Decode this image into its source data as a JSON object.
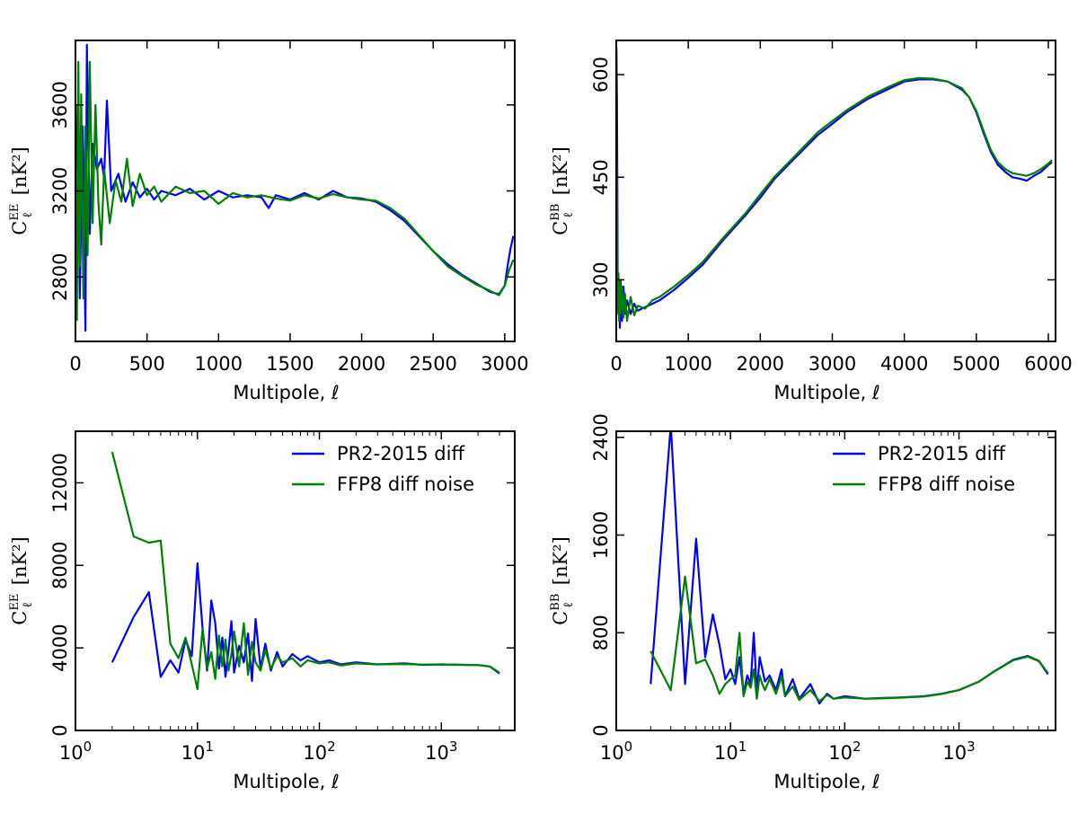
{
  "colors": {
    "series1": "#0000ff",
    "series2": "#008000",
    "axis": "#000000",
    "background": "#ffffff"
  },
  "chart_data": [
    {
      "id": "top-left",
      "type": "line",
      "xscale": "linear",
      "xlabel": "Multipole, ℓ",
      "ylabel": {
        "main": "C",
        "sub": "ℓ",
        "sup": "EE",
        "unit": "[nK²]"
      },
      "xlim": [
        0,
        3070
      ],
      "ylim": [
        2500,
        3900
      ],
      "xticks": [
        0,
        500,
        1000,
        1500,
        2000,
        2500,
        3000
      ],
      "xtick_labels": [
        "0",
        "500",
        "1000",
        "1500",
        "2000",
        "2500",
        "3000"
      ],
      "yticks": [
        2800,
        3200,
        3600
      ],
      "ytick_labels": [
        "2800",
        "3200",
        "3600"
      ],
      "series": [
        {
          "name": "PR2-2015 diff",
          "color": "#0000ff",
          "x": [
            2,
            15,
            30,
            50,
            70,
            80,
            100,
            120,
            150,
            180,
            200,
            220,
            250,
            300,
            350,
            400,
            450,
            500,
            550,
            600,
            700,
            800,
            900,
            1000,
            1100,
            1200,
            1300,
            1350,
            1400,
            1500,
            1600,
            1700,
            1800,
            1900,
            2000,
            2100,
            2200,
            2300,
            2400,
            2500,
            2600,
            2700,
            2800,
            2900,
            2960,
            3000,
            3020,
            3040,
            3060
          ],
          "y": [
            3000,
            3600,
            2700,
            3500,
            2550,
            3880,
            3000,
            3420,
            3300,
            3350,
            3260,
            3620,
            3200,
            3280,
            3150,
            3240,
            3170,
            3210,
            3160,
            3200,
            3180,
            3210,
            3160,
            3200,
            3170,
            3180,
            3170,
            3120,
            3180,
            3160,
            3190,
            3160,
            3200,
            3170,
            3165,
            3150,
            3110,
            3060,
            2990,
            2920,
            2860,
            2810,
            2770,
            2730,
            2720,
            2760,
            2850,
            2930,
            2990
          ]
        },
        {
          "name": "FFP8 diff noise",
          "color": "#008000",
          "x": [
            2,
            10,
            20,
            30,
            40,
            55,
            70,
            85,
            100,
            120,
            140,
            160,
            180,
            200,
            240,
            280,
            320,
            360,
            400,
            450,
            500,
            550,
            600,
            700,
            800,
            900,
            1000,
            1100,
            1200,
            1300,
            1400,
            1500,
            1600,
            1700,
            1800,
            1900,
            2000,
            2100,
            2200,
            2300,
            2400,
            2500,
            2600,
            2700,
            2800,
            2900,
            2960,
            3000,
            3030,
            3060
          ],
          "y": [
            3300,
            2600,
            3800,
            2850,
            3650,
            2700,
            3500,
            2900,
            3800,
            3050,
            3600,
            3150,
            2950,
            3300,
            3050,
            3250,
            3150,
            3350,
            3130,
            3280,
            3180,
            3220,
            3150,
            3220,
            3190,
            3200,
            3140,
            3190,
            3170,
            3180,
            3165,
            3155,
            3180,
            3165,
            3185,
            3170,
            3160,
            3155,
            3120,
            3070,
            2995,
            2920,
            2850,
            2805,
            2765,
            2735,
            2715,
            2760,
            2830,
            2880
          ]
        }
      ]
    },
    {
      "id": "top-right",
      "type": "line",
      "xscale": "linear",
      "xlabel": "Multipole, ℓ",
      "ylabel": {
        "main": "C",
        "sub": "ℓ",
        "sup": "BB",
        "unit": "[nK²]"
      },
      "xlim": [
        0,
        6100
      ],
      "ylim": [
        210,
        650
      ],
      "xticks": [
        0,
        1000,
        2000,
        3000,
        4000,
        5000,
        6000
      ],
      "xtick_labels": [
        "0",
        "1000",
        "2000",
        "3000",
        "4000",
        "5000",
        "6000"
      ],
      "yticks": [
        300,
        450,
        600
      ],
      "ytick_labels": [
        "300",
        "450",
        "600"
      ],
      "series": [
        {
          "name": "PR2-2015 diff",
          "color": "#0000ff",
          "x": [
            2,
            10,
            20,
            30,
            40,
            50,
            60,
            80,
            100,
            120,
            150,
            200,
            250,
            300,
            400,
            500,
            600,
            800,
            1000,
            1200,
            1500,
            1800,
            2000,
            2200,
            2500,
            2800,
            3000,
            3200,
            3500,
            3800,
            4000,
            4200,
            4400,
            4600,
            4800,
            4900,
            5000,
            5100,
            5200,
            5300,
            5400,
            5500,
            5600,
            5700,
            5800,
            5900,
            6000,
            6050
          ],
          "y": [
            640,
            560,
            300,
            250,
            280,
            230,
            300,
            240,
            290,
            250,
            270,
            250,
            265,
            255,
            260,
            265,
            270,
            285,
            303,
            322,
            360,
            395,
            420,
            448,
            480,
            512,
            528,
            545,
            565,
            580,
            590,
            593,
            593,
            590,
            578,
            567,
            545,
            515,
            487,
            468,
            458,
            450,
            448,
            445,
            452,
            458,
            468,
            472
          ]
        },
        {
          "name": "FFP8 diff noise",
          "color": "#008000",
          "x": [
            2,
            10,
            20,
            30,
            40,
            50,
            60,
            80,
            100,
            120,
            150,
            200,
            250,
            300,
            400,
            500,
            600,
            800,
            1000,
            1200,
            1500,
            1800,
            2000,
            2200,
            2500,
            2800,
            3000,
            3200,
            3500,
            3800,
            4000,
            4200,
            4400,
            4600,
            4800,
            4900,
            5000,
            5100,
            5200,
            5300,
            5400,
            5500,
            5600,
            5700,
            5800,
            5900,
            6000,
            6050
          ],
          "y": [
            470,
            420,
            260,
            310,
            240,
            300,
            250,
            290,
            245,
            280,
            240,
            275,
            248,
            262,
            258,
            270,
            275,
            290,
            307,
            326,
            363,
            398,
            425,
            451,
            483,
            516,
            532,
            548,
            568,
            583,
            592,
            595,
            594,
            590,
            580,
            567,
            547,
            518,
            490,
            472,
            462,
            456,
            454,
            452,
            456,
            462,
            470,
            475
          ]
        }
      ]
    },
    {
      "id": "bottom-left",
      "type": "line",
      "xscale": "log",
      "xlabel": "Multipole, ℓ",
      "ylabel": {
        "main": "C",
        "sub": "ℓ",
        "sup": "EE",
        "unit": "[nK²]"
      },
      "xlim": [
        1,
        4000
      ],
      "ylim": [
        0,
        14500
      ],
      "xticks": [
        1,
        10,
        100,
        1000
      ],
      "xtick_labels": [
        "10",
        "10",
        "10",
        "10"
      ],
      "xtick_exponents": [
        "0",
        "1",
        "2",
        "3"
      ],
      "yticks": [
        0,
        4000,
        8000,
        12000
      ],
      "ytick_labels": [
        "0",
        "4000",
        "8000",
        "12000"
      ],
      "legend": {
        "position": "top-right",
        "entries": [
          "PR2-2015 diff",
          "FFP8 diff noise"
        ]
      },
      "series": [
        {
          "name": "PR2-2015 diff",
          "color": "#0000ff",
          "x": [
            2,
            3,
            4,
            5,
            6,
            7,
            8,
            9,
            10,
            11,
            12,
            13,
            14,
            15,
            16,
            17,
            18,
            19,
            20,
            22,
            24,
            26,
            28,
            30,
            33,
            36,
            40,
            45,
            50,
            60,
            70,
            80,
            100,
            120,
            150,
            200,
            300,
            500,
            700,
            1000,
            1500,
            2000,
            2500,
            3000
          ],
          "y": [
            3300,
            5500,
            6700,
            2600,
            3400,
            2800,
            4400,
            3600,
            8100,
            5000,
            2900,
            6300,
            5200,
            3000,
            4500,
            2600,
            3900,
            5300,
            2800,
            4100,
            3300,
            4700,
            2400,
            5400,
            3000,
            4200,
            2900,
            3800,
            3100,
            3700,
            3400,
            3600,
            3300,
            3400,
            3200,
            3300,
            3200,
            3250,
            3180,
            3200,
            3180,
            3170,
            3100,
            2750
          ]
        },
        {
          "name": "FFP8 diff noise",
          "color": "#008000",
          "x": [
            2,
            3,
            4,
            5,
            6,
            7,
            8,
            9,
            10,
            11,
            12,
            13,
            14,
            15,
            16,
            17,
            18,
            19,
            20,
            22,
            24,
            26,
            28,
            30,
            33,
            36,
            40,
            45,
            50,
            60,
            70,
            80,
            100,
            120,
            150,
            200,
            300,
            500,
            700,
            1000,
            1500,
            2000,
            2500,
            3000
          ],
          "y": [
            13500,
            9400,
            9100,
            9200,
            4200,
            3500,
            4500,
            3200,
            2000,
            4900,
            3000,
            3800,
            2500,
            4600,
            3100,
            4400,
            2900,
            3700,
            4800,
            3100,
            5200,
            2700,
            4300,
            3300,
            2900,
            3900,
            3000,
            3600,
            3300,
            3500,
            3100,
            3400,
            3250,
            3300,
            3150,
            3250,
            3200,
            3220,
            3190,
            3200,
            3180,
            3170,
            3100,
            2800
          ]
        }
      ]
    },
    {
      "id": "bottom-right",
      "type": "line",
      "xscale": "log",
      "xlabel": "Multipole, ℓ",
      "ylabel": {
        "main": "C",
        "sub": "ℓ",
        "sup": "BB",
        "unit": "[nK²]"
      },
      "xlim": [
        1,
        7000
      ],
      "ylim": [
        0,
        2450
      ],
      "xticks": [
        1,
        10,
        100,
        1000
      ],
      "xtick_labels": [
        "10",
        "10",
        "10",
        "10"
      ],
      "xtick_exponents": [
        "0",
        "1",
        "2",
        "3"
      ],
      "yticks": [
        0,
        800,
        1600,
        2400
      ],
      "ytick_labels": [
        "0",
        "800",
        "1600",
        "2400"
      ],
      "legend": {
        "position": "top-right",
        "entries": [
          "PR2-2015 diff",
          "FFP8 diff noise"
        ]
      },
      "series": [
        {
          "name": "PR2-2015 diff",
          "color": "#0000ff",
          "x": [
            2,
            3,
            4,
            5,
            6,
            7,
            8,
            9,
            10,
            11,
            12,
            13,
            14,
            15,
            16,
            17,
            18,
            19,
            20,
            22,
            25,
            28,
            30,
            35,
            40,
            50,
            60,
            70,
            80,
            100,
            150,
            200,
            300,
            500,
            700,
            1000,
            1500,
            2000,
            3000,
            4000,
            5000,
            6000
          ],
          "y": [
            380,
            2500,
            380,
            1570,
            600,
            950,
            700,
            420,
            500,
            380,
            600,
            300,
            450,
            380,
            800,
            300,
            600,
            500,
            400,
            450,
            330,
            500,
            280,
            420,
            260,
            380,
            220,
            300,
            260,
            280,
            260,
            265,
            270,
            280,
            300,
            330,
            400,
            480,
            580,
            610,
            570,
            460
          ]
        },
        {
          "name": "FFP8 diff noise",
          "color": "#008000",
          "x": [
            2,
            3,
            4,
            5,
            6,
            7,
            8,
            9,
            10,
            11,
            12,
            13,
            14,
            15,
            16,
            17,
            18,
            19,
            20,
            22,
            25,
            28,
            30,
            35,
            40,
            50,
            60,
            70,
            80,
            100,
            150,
            200,
            300,
            500,
            700,
            1000,
            1500,
            2000,
            3000,
            4000,
            5000,
            6000
          ],
          "y": [
            650,
            330,
            1260,
            550,
            580,
            450,
            300,
            380,
            420,
            450,
            800,
            280,
            400,
            350,
            500,
            260,
            450,
            380,
            330,
            420,
            300,
            440,
            280,
            360,
            250,
            330,
            240,
            290,
            260,
            270,
            260,
            262,
            268,
            278,
            298,
            330,
            400,
            478,
            575,
            605,
            568,
            470
          ]
        }
      ]
    }
  ]
}
